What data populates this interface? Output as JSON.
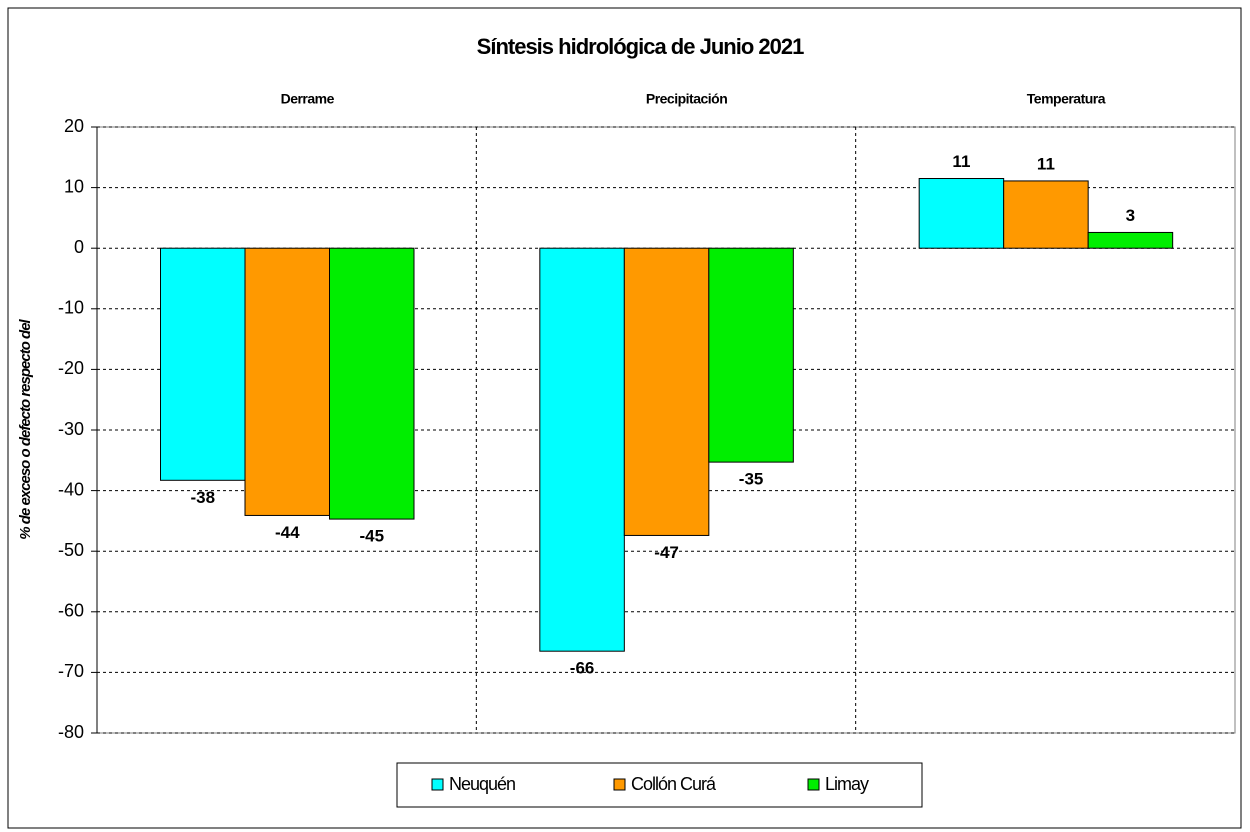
{
  "chart_data": {
    "type": "bar",
    "title": "Síntesis hidrológica de Junio 2021",
    "y_label": "% de exceso o defecto respecto del",
    "categories": [
      "Derrame",
      "Precipitación",
      "Temperatura"
    ],
    "series": [
      {
        "name": "Neuquén",
        "color": "#00ffff",
        "label_color": "#000000",
        "values": [
          -38.3,
          -66.5,
          11.5
        ],
        "value_labels": [
          "-38",
          "-66",
          "11"
        ]
      },
      {
        "name": "Collón Curá",
        "color": "#ff9900",
        "label_color": "#1e4d1e",
        "values": [
          -44.1,
          -47.4,
          11.1
        ],
        "value_labels": [
          "-44",
          "-47",
          "11"
        ]
      },
      {
        "name": "Limay",
        "color": "#00ee00",
        "label_color": "#000000",
        "values": [
          -44.7,
          -35.3,
          2.6
        ],
        "value_labels": [
          "-45",
          "-35",
          "3"
        ]
      }
    ],
    "ylim": [
      -80,
      20
    ],
    "yticks": [
      -80,
      -70,
      -60,
      -50,
      -40,
      -30,
      -20,
      -10,
      0,
      10,
      20
    ],
    "grid": true,
    "legend": "bottom"
  }
}
